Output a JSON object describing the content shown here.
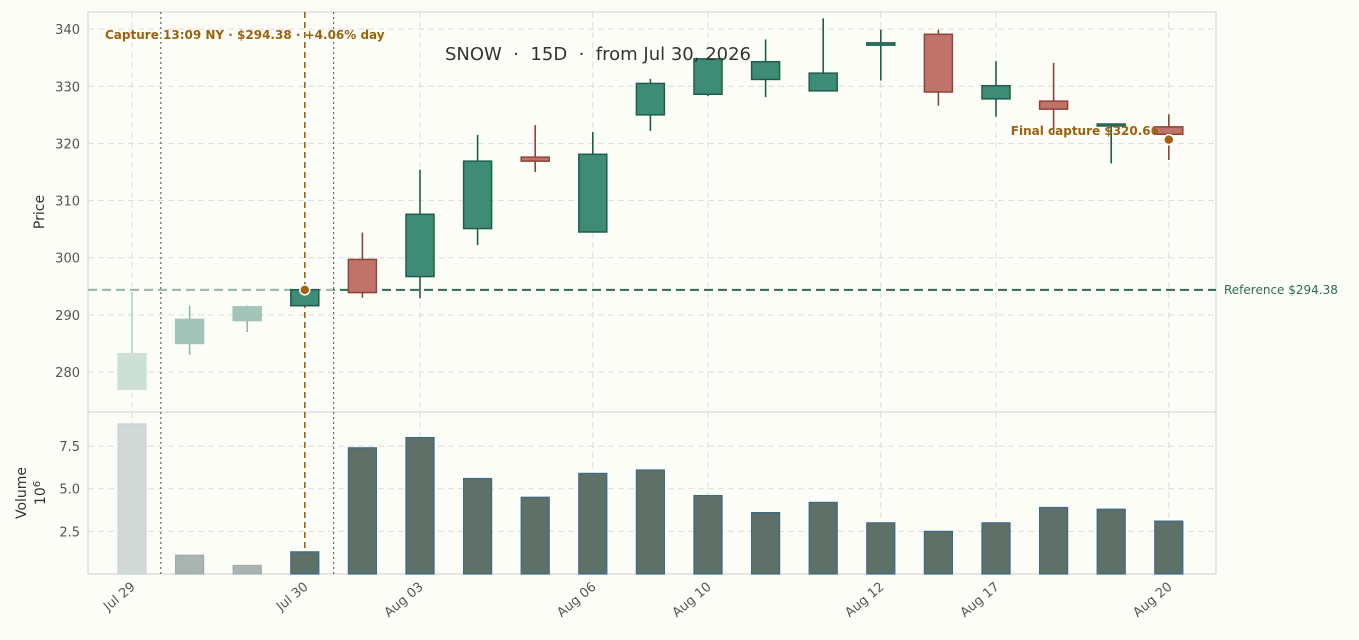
{
  "chart_data": {
    "type": "candlestick",
    "title": "SNOW  ·  15D  ·  from Jul 30, 2026",
    "price_axis": {
      "label": "Price",
      "ylim": [
        273,
        343
      ],
      "ticks": [
        280,
        290,
        300,
        310,
        320,
        330,
        340
      ]
    },
    "volume_axis": {
      "label": "Volume",
      "multiplier_label": "10^6",
      "ylim": [
        0,
        9.5
      ],
      "ticks": [
        2.5,
        5.0,
        7.5
      ],
      "tick_labels": [
        "2.5",
        "5.0",
        "7.5"
      ]
    },
    "x_tick_labels": [
      {
        "index": 0,
        "label": "Jul 29"
      },
      {
        "index": 3,
        "label": "Jul 30"
      },
      {
        "index": 5,
        "label": "Aug 03"
      },
      {
        "index": 8,
        "label": "Aug 06"
      },
      {
        "index": 10,
        "label": "Aug 10"
      },
      {
        "index": 13,
        "label": "Aug 12"
      },
      {
        "index": 15,
        "label": "Aug 17"
      },
      {
        "index": 18,
        "label": "Aug 20"
      }
    ],
    "candles": [
      {
        "index": 0,
        "open": 277.0,
        "high": 294.0,
        "low": 277.0,
        "close": 283.2,
        "volume": 8.8,
        "faded": true
      },
      {
        "index": 1,
        "open": 285.0,
        "high": 291.6,
        "low": 283.0,
        "close": 289.2,
        "volume": 1.1,
        "faded": true
      },
      {
        "index": 2,
        "open": 289.0,
        "high": 291.6,
        "low": 287.0,
        "close": 291.4,
        "volume": 0.5,
        "faded": true
      },
      {
        "index": 3,
        "open": 291.6,
        "high": 294.6,
        "low": 291.6,
        "close": 294.4,
        "volume": 1.3,
        "faded": false
      },
      {
        "index": 4,
        "open": 299.7,
        "high": 304.4,
        "low": 293.0,
        "close": 293.9,
        "volume": 7.4,
        "faded": false
      },
      {
        "index": 5,
        "open": 296.7,
        "high": 315.4,
        "low": 292.9,
        "close": 307.6,
        "volume": 8.0,
        "faded": false
      },
      {
        "index": 6,
        "open": 305.1,
        "high": 321.5,
        "low": 302.2,
        "close": 316.9,
        "volume": 5.6,
        "faded": false
      },
      {
        "index": 7,
        "open": 317.6,
        "high": 323.2,
        "low": 315.0,
        "close": 316.9,
        "volume": 4.5,
        "faded": false
      },
      {
        "index": 8,
        "open": 304.5,
        "high": 322.0,
        "low": 304.5,
        "close": 318.1,
        "volume": 5.9,
        "faded": false
      },
      {
        "index": 9,
        "open": 325.0,
        "high": 331.3,
        "low": 322.2,
        "close": 330.5,
        "volume": 6.1,
        "faded": false
      },
      {
        "index": 10,
        "open": 328.6,
        "high": 335.0,
        "low": 328.3,
        "close": 334.8,
        "volume": 4.6,
        "faded": false
      },
      {
        "index": 11,
        "open": 331.2,
        "high": 338.2,
        "low": 328.1,
        "close": 334.3,
        "volume": 3.6,
        "faded": false
      },
      {
        "index": 12,
        "open": 329.2,
        "high": 341.9,
        "low": 329.2,
        "close": 332.3,
        "volume": 4.2,
        "faded": false
      },
      {
        "index": 13,
        "open": 337.2,
        "high": 339.9,
        "low": 331.0,
        "close": 337.6,
        "volume": 3.0,
        "faded": false
      },
      {
        "index": 14,
        "open": 339.1,
        "high": 339.9,
        "low": 326.6,
        "close": 329.0,
        "volume": 2.5,
        "faded": false
      },
      {
        "index": 15,
        "open": 327.8,
        "high": 334.4,
        "low": 324.7,
        "close": 330.1,
        "volume": 3.0,
        "faded": false
      },
      {
        "index": 16,
        "open": 327.4,
        "high": 334.1,
        "low": 321.6,
        "close": 326.0,
        "volume": 3.9,
        "faded": false
      },
      {
        "index": 17,
        "open": 323.4,
        "high": 323.4,
        "low": 316.5,
        "close": 323.4,
        "volume": 3.8,
        "faded": false
      },
      {
        "index": 18,
        "open": 322.9,
        "high": 325.1,
        "low": 317.1,
        "close": 321.6,
        "volume": 3.1,
        "faded": false
      }
    ],
    "reference_line": {
      "value": 294.38,
      "label": "Reference $294.38"
    },
    "capture_line": {
      "index": 3.0,
      "label": "Capture 13:09 NY · $294.38 · +4.06% day",
      "value": 294.38
    },
    "session_lines": [
      0.5,
      3.5
    ],
    "final_capture": {
      "index": 18,
      "value": 320.66,
      "label": "Final capture $320.66"
    },
    "colors": {
      "up": "#3e8c76",
      "up_edge": "#1f5e4c",
      "down": "#c0736a",
      "down_edge": "#8e4339",
      "up_faded": "#a3c5b9",
      "down_faded": "#cde0d8",
      "volume": "#5f7069",
      "volume_edge": "#3a6a86",
      "volume_faded": "#aab4b0",
      "volume_faded0": "#d3d9d6",
      "reference": "#2e6b57",
      "capture": "#a06214",
      "annotation": "#9a6310",
      "grid": "#dcdcdc"
    },
    "grid": true
  }
}
